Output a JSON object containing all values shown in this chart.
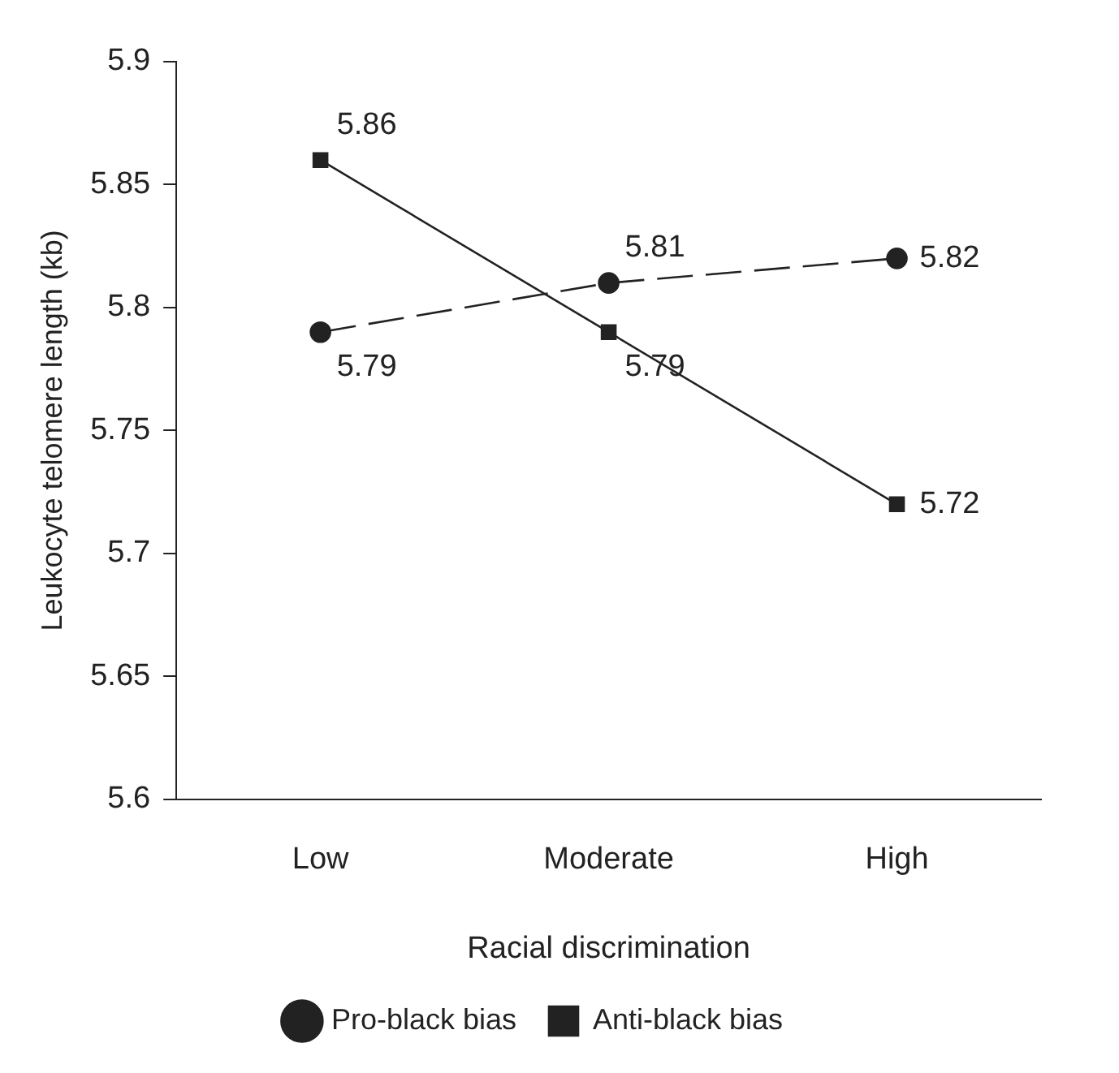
{
  "chart_data": {
    "type": "line",
    "xlabel": "Racial discrimination",
    "ylabel": "Leukocyte telomere length (kb)",
    "categories": [
      "Low",
      "Moderate",
      "High"
    ],
    "series": [
      {
        "name": "Pro-black bias",
        "color": "#222222",
        "values": [
          5.79,
          5.81,
          5.82
        ],
        "marker": "circle",
        "line_style": "dashed"
      },
      {
        "name": "Anti-black bias",
        "color": "#222222",
        "values": [
          5.86,
          5.79,
          5.72
        ],
        "marker": "square",
        "line_style": "solid"
      }
    ],
    "ylim": [
      5.6,
      5.9
    ],
    "yticks": [
      5.6,
      5.65,
      5.7,
      5.75,
      5.8,
      5.85,
      5.9
    ],
    "grid": false,
    "legend": "bottom",
    "data_labels": true
  }
}
